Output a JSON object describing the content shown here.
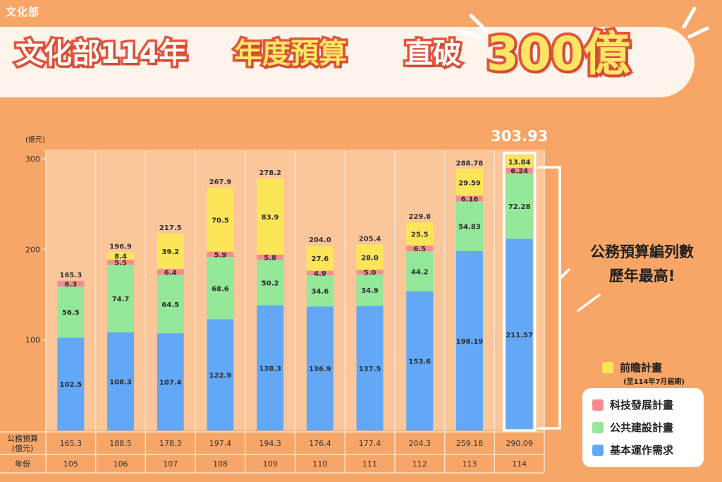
{
  "logo_text": "文化部",
  "title": {
    "part1": "文化部114年",
    "part2": "年度預算",
    "part3": "直破",
    "part4": "300億"
  },
  "callout": {
    "line1": "公務預算編列數",
    "line2": "歷年最高!"
  },
  "colors": {
    "background": "#f8a667",
    "basic": "#62a8f7",
    "public": "#93e89a",
    "tech": "#f58c92",
    "forward": "#fde55a",
    "highlight": "#ffffff"
  },
  "chart_data": {
    "type": "bar",
    "stacked": true,
    "ylabel": "(億元)",
    "ylim": [
      0,
      300
    ],
    "yticks": [
      100,
      200,
      300
    ],
    "categories": [
      "105",
      "106",
      "107",
      "108",
      "109",
      "110",
      "111",
      "112",
      "113",
      "114"
    ],
    "series": [
      {
        "name": "基本運作需求",
        "color": "#62a8f7",
        "values": [
          102.5,
          108.3,
          107.4,
          122.9,
          138.3,
          136.9,
          137.5,
          153.6,
          198.19,
          211.57
        ],
        "labels": [
          "102.5",
          "108.3",
          "107.4",
          "122.9",
          "138.3",
          "136.9",
          "137.5",
          "153.6",
          "198.19",
          "211.57"
        ]
      },
      {
        "name": "公共建設計畫",
        "color": "#93e89a",
        "values": [
          56.5,
          74.7,
          64.5,
          68.6,
          50.2,
          34.6,
          34.9,
          44.2,
          54.83,
          72.28
        ],
        "labels": [
          "56.5",
          "74.7",
          "64.5",
          "68.6",
          "50.2",
          "34.6",
          "34.9",
          "44.2",
          "54.83",
          "72.28"
        ]
      },
      {
        "name": "科技發展計畫",
        "color": "#f58c92",
        "values": [
          6.3,
          5.5,
          6.4,
          5.9,
          5.8,
          4.9,
          5.0,
          6.5,
          6.16,
          6.24
        ],
        "labels": [
          "6.3",
          "5.5",
          "6.4",
          "5.9",
          "5.8",
          "4.9",
          "5.0",
          "6.5",
          "6.16",
          "6.24"
        ]
      },
      {
        "name": "前瞻計畫",
        "note": "(至114年7月屆期)",
        "color": "#fde55a",
        "values": [
          0,
          8.4,
          39.2,
          70.5,
          83.9,
          27.6,
          28.0,
          25.5,
          29.59,
          13.84
        ],
        "labels": [
          "",
          "8.4",
          "39.2",
          "70.5",
          "83.9",
          "27.6",
          "28.0",
          "25.5",
          "29.59",
          "13.84"
        ]
      }
    ],
    "totals": [
      "165.3",
      "196.9",
      "217.5",
      "267.9",
      "278.2",
      "204.0",
      "205.4",
      "229.8",
      "288.78",
      "303.93"
    ],
    "highlight_index": 9,
    "table": {
      "row1_label": "公務預算\n(億元)",
      "row1_values": [
        "165.3",
        "188.5",
        "178.3",
        "197.4",
        "194.3",
        "176.4",
        "177.4",
        "204.3",
        "259.18",
        "290.09"
      ],
      "row2_label": "年份"
    }
  }
}
